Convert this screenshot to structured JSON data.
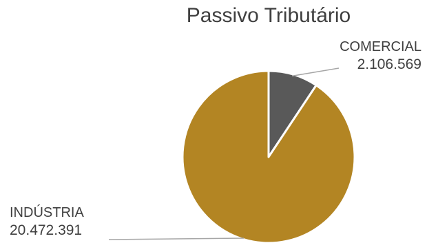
{
  "chart_data": {
    "type": "pie",
    "title": "Passivo Tributário",
    "slices": [
      {
        "label": "COMERCIAL",
        "value": 2106569,
        "display_value": "2.106.569",
        "color": "#595959"
      },
      {
        "label": "INDÚSTRIA",
        "value": 20472391,
        "display_value": "20.472.391",
        "color": "#B38523"
      }
    ],
    "legend": "none",
    "data_labels": "outside with leader lines"
  }
}
